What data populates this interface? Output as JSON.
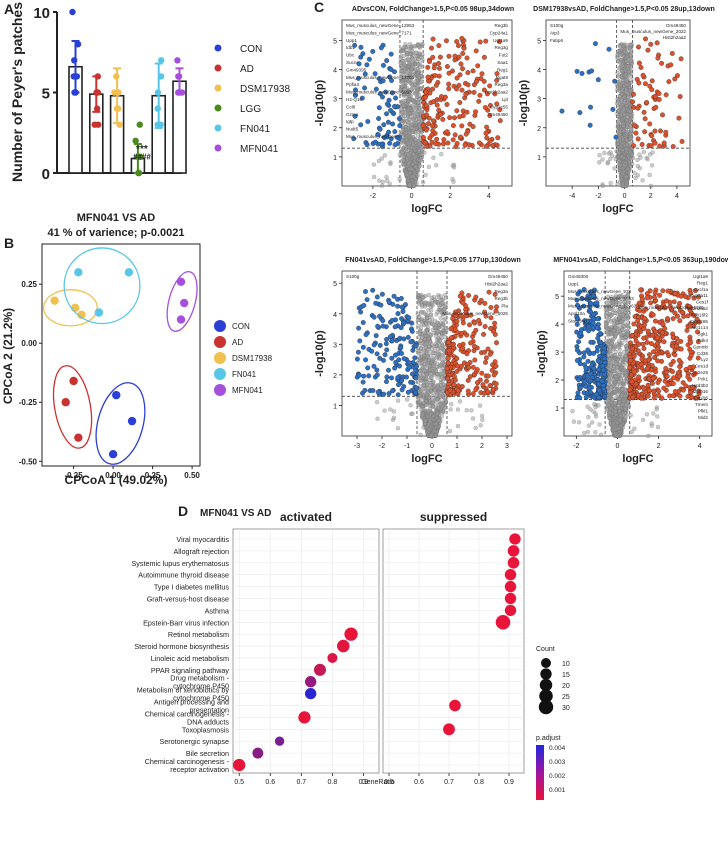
{
  "panel_labels": {
    "a": "A",
    "b": "B",
    "c": "C",
    "d": "D"
  },
  "legend_a": [
    {
      "label": "CON",
      "color": "#2a3fd6"
    },
    {
      "label": "AD",
      "color": "#c9322f"
    },
    {
      "label": "DSM17938",
      "color": "#f2c04f"
    },
    {
      "label": "LGG",
      "color": "#4b8a1f"
    },
    {
      "label": "FN041",
      "color": "#58c6e6"
    },
    {
      "label": "MFN041",
      "color": "#a64fdc"
    }
  ],
  "legend_b": [
    {
      "label": "CON",
      "color": "#2a3fd6"
    },
    {
      "label": "AD",
      "color": "#c9322f"
    },
    {
      "label": "DSM17938",
      "color": "#f2c04f"
    },
    {
      "label": "FN041",
      "color": "#58c6e6"
    },
    {
      "label": "MFN041",
      "color": "#a64fdc"
    }
  ],
  "colors": {
    "up": "#d9532e",
    "down": "#2f6fbf",
    "ns": "#9a9a9a",
    "grid": "#e8e8e8"
  },
  "chart_data": [
    {
      "id": "A",
      "type": "bar",
      "ylabel": "Number of Peyer's patches",
      "ylim": [
        0,
        10
      ],
      "yticks": [
        "0",
        "5",
        "10"
      ],
      "categories": [
        "CON",
        "AD",
        "DSM17938",
        "LGG",
        "FN041",
        "MFN041"
      ],
      "values": [
        6.6,
        4.9,
        4.8,
        0.9,
        4.8,
        5.7
      ],
      "errors": [
        1.6,
        1.1,
        1.7,
        0.9,
        2.0,
        0.8
      ],
      "points": [
        [
          10,
          8,
          7,
          6,
          6,
          5,
          5
        ],
        [
          6,
          5,
          5,
          5,
          4,
          3,
          3
        ],
        [
          6,
          5,
          5,
          5,
          4,
          4,
          3
        ],
        [
          3,
          2,
          1,
          1,
          0,
          0,
          0
        ],
        [
          7,
          6,
          5,
          4,
          3,
          3
        ],
        [
          7,
          6,
          6,
          5,
          5,
          5
        ]
      ],
      "annotation_top": "***",
      "annotation_bottom": "####"
    },
    {
      "id": "B",
      "type": "scatter",
      "title": "MFN041 VS AD",
      "subtitle": "41 % of varience; p-0.0021",
      "xlabel": "CPCoA 1 (49.02%)",
      "ylabel": "CPCoA 2 (21.2%)",
      "xlim": [
        -0.45,
        0.55
      ],
      "ylim": [
        -0.52,
        0.42
      ],
      "xticks": [
        -0.25,
        0.0,
        0.25,
        0.5
      ],
      "xtick_labels": [
        "-0.25",
        "0.00",
        "0.25",
        "0.50"
      ],
      "yticks": [
        0.25,
        0.0,
        -0.25,
        -0.5
      ],
      "ytick_labels": [
        "0.25",
        "0.00",
        "-0.25",
        "-0.50"
      ],
      "series": [
        {
          "name": "CON",
          "points": [
            [
              0.02,
              -0.22
            ],
            [
              0.12,
              -0.33
            ],
            [
              0.0,
              -0.47
            ]
          ]
        },
        {
          "name": "AD",
          "points": [
            [
              -0.25,
              -0.16
            ],
            [
              -0.3,
              -0.25
            ],
            [
              -0.22,
              -0.4
            ]
          ]
        },
        {
          "name": "DSM17938",
          "points": [
            [
              -0.37,
              0.18
            ],
            [
              -0.24,
              0.15
            ],
            [
              -0.2,
              0.12
            ]
          ]
        },
        {
          "name": "FN041",
          "points": [
            [
              -0.22,
              0.3
            ],
            [
              -0.09,
              0.13
            ],
            [
              0.1,
              0.3
            ]
          ]
        },
        {
          "name": "MFN041",
          "points": [
            [
              0.43,
              0.26
            ],
            [
              0.45,
              0.17
            ],
            [
              0.43,
              0.1
            ]
          ]
        }
      ]
    },
    {
      "id": "C1",
      "type": "scatter",
      "title": "ADvsCON, FoldChange>1.5,P<0.05 98up,34down",
      "xlabel": "logFC",
      "ylabel": "-log10(p)",
      "xlim": [
        -3.6,
        5.2
      ],
      "ylim": [
        0,
        5.7
      ],
      "xticks": [
        -2,
        0,
        2,
        4
      ],
      "yticks": [
        1,
        2,
        3,
        4,
        5
      ],
      "labels_left": [
        "Mus_musculus_newGene_12953",
        "Mus_musculus_newGene_7171",
        "Upp1",
        "Idb1",
        "Ubc",
        "Sucnr",
        "Gm49395",
        "Mus_musculus_newGene_12701",
        "Ppfia3",
        "Mus_musculus_newGene_5993",
        "H2-Q10",
        "Ccl8",
        "Gzma",
        "Igtp",
        "Nudt5",
        "Mus_musculus_newGene"
      ],
      "labels_right": [
        "Reg3b",
        "Cyp24a1",
        "Ugt1a9",
        "Reg3g",
        "Fut2",
        "Saa1",
        "Reg1",
        "Ngat6",
        "Reg3a",
        "Hist2h2aa2",
        "Lpl",
        "Cyp2c55",
        "Gm49450"
      ]
    },
    {
      "id": "C2",
      "type": "scatter",
      "title": "DSM17938vsAD, FoldChange>1.5,P<0.05 28up,13down",
      "xlabel": "logFC",
      "ylabel": "-log10(p)",
      "xlim": [
        -6,
        5
      ],
      "ylim": [
        0,
        5.7
      ],
      "xticks": [
        -4,
        -2,
        0,
        2,
        4
      ],
      "yticks": [
        1,
        2,
        3,
        4,
        5
      ],
      "labels_left": [
        "S100g",
        "Atp3",
        "Fabp6"
      ],
      "labels_right": [
        "Gm49450",
        "Mus_musculus_newGene_2022",
        "Hist2h2aa2"
      ]
    },
    {
      "id": "C3",
      "type": "scatter",
      "title": "FN041vsAD, FoldChange>1.5,P<0.05 177up,130down",
      "xlabel": "logFC",
      "ylabel": "-log10(p)",
      "xlim": [
        -3.6,
        3.2
      ],
      "ylim": [
        0,
        5.4
      ],
      "xticks": [
        -3,
        -2,
        -1,
        0,
        1,
        2,
        3
      ],
      "yticks": [
        1,
        2,
        3,
        4,
        5
      ],
      "labels_left": [
        "S100g"
      ],
      "labels_right": [
        "Gm49450",
        "Hist2h2aa2",
        "Reg3a",
        "Reg3b",
        "Pla",
        "Mus_musculus_newGene_5025"
      ]
    },
    {
      "id": "C4",
      "type": "scatter",
      "title": "MFN041vsAD, FoldChange>1.5,P<0.05 363up,190down",
      "xlabel": "logFC",
      "ylabel": "-log10(p)",
      "xlim": [
        -2.6,
        4.6
      ],
      "ylim": [
        0,
        5.9
      ],
      "xticks": [
        -2,
        0,
        2,
        4
      ],
      "yticks": [
        1,
        2,
        3,
        4,
        5
      ],
      "labels_left": [
        "Gm49300",
        "Upp1",
        "Mus_musculus_newGene_938",
        "Mus_musculus_newGene_5563",
        "Mus_musculus_newGene_12063",
        "Apol10a",
        "Stard3np"
      ],
      "labels_right": [
        "Ugt1a9",
        "Reg1",
        "Cxcl1a",
        "Cyp3a11",
        "Ces1f",
        "Hist2h2aa2",
        "Rdh16f2",
        "Cyp2c65",
        "Akr1c14",
        "Sgk1",
        "Pdk4",
        "Gpnmb",
        "Cd36",
        "Lyz",
        "Ces1d",
        "Cyp2e25",
        "Pck1",
        "Hsd3b3",
        "Zbtb16",
        "Cyp2j6",
        "Tmem",
        "Pfkl1",
        "Mid2"
      ],
      "label_mid": "Mus_musculus_newGene_1236"
    },
    {
      "id": "D",
      "type": "scatter",
      "title": "MFN041 VS AD",
      "xlabel": "GeneRatio",
      "facets": [
        "activated",
        "suppressed"
      ],
      "xlim": [
        0.48,
        0.95
      ],
      "xticks": [
        0.5,
        0.6,
        0.7,
        0.8,
        0.9
      ],
      "xtick_labels": [
        "0.5",
        "0.6",
        "0.7",
        "0.8",
        "0.9"
      ],
      "pathways": [
        "Viral myocarditis",
        "Allograft rejection",
        "Systemic lupus erythematosus",
        "Autoimmune thyroid disease",
        "Type I diabetes mellitus",
        "Graft-versus-host disease",
        "Asthma",
        "Epstein-Barr virus infection",
        "Retinol metabolism",
        "Steroid hormone biosynthesis",
        "Linoleic acid metabolism",
        "PPAR signaling pathway",
        "Drug metabolism - cytochrome P450",
        "Metabolism of xenobiotics by cytochrome P450",
        "Antigen processing and presentation",
        "Chemical carcinogenesis - DNA adducts",
        "Toxoplasmosis",
        "Serotonergic synapse",
        "Bile secretion",
        "Chemical carcinogenesis - receptor activation"
      ],
      "points": [
        {
          "facet": 1,
          "row": 0,
          "x": 0.92,
          "count": 15,
          "padj": 0.0006
        },
        {
          "facet": 1,
          "row": 1,
          "x": 0.915,
          "count": 16,
          "padj": 0.0006
        },
        {
          "facet": 1,
          "row": 2,
          "x": 0.915,
          "count": 16,
          "padj": 0.0006
        },
        {
          "facet": 1,
          "row": 3,
          "x": 0.905,
          "count": 15,
          "padj": 0.0006
        },
        {
          "facet": 1,
          "row": 4,
          "x": 0.905,
          "count": 15,
          "padj": 0.0006
        },
        {
          "facet": 1,
          "row": 5,
          "x": 0.905,
          "count": 15,
          "padj": 0.0006
        },
        {
          "facet": 1,
          "row": 6,
          "x": 0.905,
          "count": 15,
          "padj": 0.0006
        },
        {
          "facet": 1,
          "row": 7,
          "x": 0.88,
          "count": 31,
          "padj": 0.0006
        },
        {
          "facet": 0,
          "row": 8,
          "x": 0.86,
          "count": 24,
          "padj": 0.0006
        },
        {
          "facet": 0,
          "row": 9,
          "x": 0.835,
          "count": 20,
          "padj": 0.0007
        },
        {
          "facet": 0,
          "row": 10,
          "x": 0.8,
          "count": 10,
          "padj": 0.0008
        },
        {
          "facet": 0,
          "row": 11,
          "x": 0.76,
          "count": 18,
          "padj": 0.0012
        },
        {
          "facet": 0,
          "row": 12,
          "x": 0.73,
          "count": 15,
          "padj": 0.002
        },
        {
          "facet": 0,
          "row": 13,
          "x": 0.73,
          "count": 15,
          "padj": 0.0038
        },
        {
          "facet": 1,
          "row": 14,
          "x": 0.72,
          "count": 16,
          "padj": 0.0006
        },
        {
          "facet": 0,
          "row": 15,
          "x": 0.71,
          "count": 19,
          "padj": 0.0006
        },
        {
          "facet": 1,
          "row": 16,
          "x": 0.7,
          "count": 17,
          "padj": 0.0006
        },
        {
          "facet": 0,
          "row": 17,
          "x": 0.63,
          "count": 8,
          "padj": 0.0025
        },
        {
          "facet": 0,
          "row": 18,
          "x": 0.56,
          "count": 13,
          "padj": 0.0022
        },
        {
          "facet": 0,
          "row": 19,
          "x": 0.5,
          "count": 19,
          "padj": 0.0006
        }
      ],
      "count_legend": {
        "title": "Count",
        "values": [
          10,
          15,
          20,
          25,
          30
        ]
      },
      "padj_legend": {
        "title": "p.adjust",
        "ticks": [
          "0.004",
          "0.003",
          "0.002",
          "0.001"
        ]
      }
    }
  ]
}
